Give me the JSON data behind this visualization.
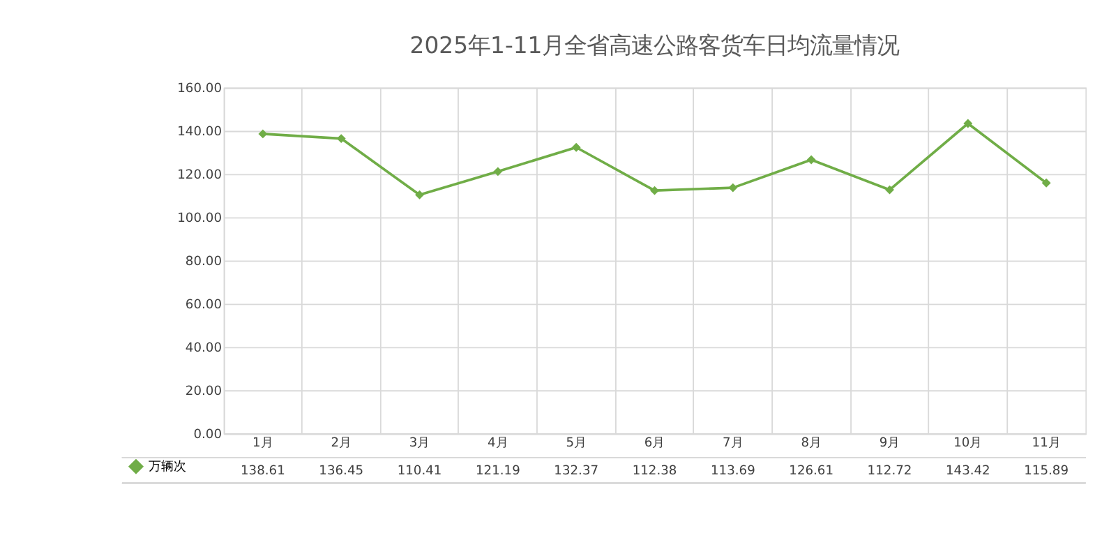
{
  "chart_data": {
    "type": "line",
    "title": "2025年1-11月全省高速公路客货车日均流量情况",
    "categories": [
      "1月",
      "2月",
      "3月",
      "4月",
      "5月",
      "6月",
      "7月",
      "8月",
      "9月",
      "10月",
      "11月"
    ],
    "series": [
      {
        "name": "万辆次",
        "color": "#70ad47",
        "values": [
          138.61,
          136.45,
          110.41,
          121.19,
          132.37,
          112.38,
          113.69,
          126.61,
          112.72,
          143.42,
          115.89
        ]
      }
    ],
    "ylim": [
      0,
      160
    ],
    "yticks": [
      {
        "value": 0,
        "label": "0.00"
      },
      {
        "value": 20,
        "label": "20.00"
      },
      {
        "value": 40,
        "label": "40.00"
      },
      {
        "value": 60,
        "label": "60.00"
      },
      {
        "value": 80,
        "label": "80.00"
      },
      {
        "value": 100,
        "label": "100.00"
      },
      {
        "value": 120,
        "label": "120.00"
      },
      {
        "value": 140,
        "label": "140.00"
      },
      {
        "value": 160,
        "label": "160.00"
      }
    ],
    "grid": true,
    "marker": "diamond",
    "line_style": "solid",
    "data_labels": true,
    "legend": "bottom left"
  }
}
